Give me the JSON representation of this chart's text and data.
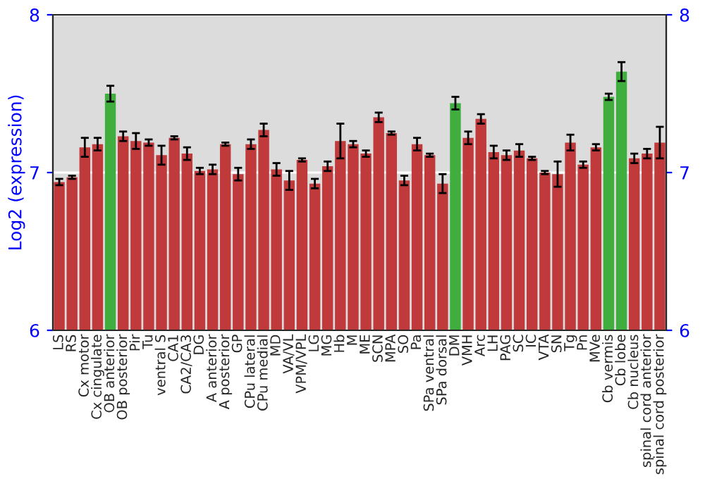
{
  "chart_data": {
    "type": "bar",
    "ylabel": "Log2 (expression)",
    "categories": [
      "LS",
      "RS",
      "Cx motor",
      "Cx cingulate",
      "OB anterior",
      "OB posterior",
      "Pir",
      "Tu",
      "ventral S",
      "CA1",
      "CA2/CA3",
      "DG",
      "A anterior",
      "A posterior",
      "GP",
      "CPu lateral",
      "CPu medial",
      "MD",
      "VA/VL",
      "VPM/VPL",
      "LG",
      "MG",
      "Hb",
      "M",
      "ME",
      "SCN",
      "MPA",
      "SO",
      "Pa",
      "SPa ventral",
      "SPa dorsal",
      "DM",
      "VMH",
      "Arc",
      "LH",
      "PAG",
      "SC",
      "IC",
      "VTA",
      "SN",
      "Tg",
      "Pn",
      "MVe",
      "Cb vermis",
      "Cb lobe",
      "Cb nucleus",
      "spinal cord anterior",
      "spinal cord posterior"
    ],
    "values": [
      6.94,
      6.97,
      7.16,
      7.18,
      7.5,
      7.23,
      7.2,
      7.19,
      7.11,
      7.22,
      7.12,
      7.01,
      7.02,
      7.18,
      6.99,
      7.18,
      7.27,
      7.02,
      6.95,
      7.08,
      6.93,
      7.04,
      7.2,
      7.18,
      7.12,
      7.35,
      7.25,
      6.95,
      7.18,
      7.11,
      6.93,
      7.44,
      7.22,
      7.34,
      7.13,
      7.11,
      7.14,
      7.09,
      7.0,
      6.99,
      7.19,
      7.05,
      7.16,
      7.48,
      7.64,
      7.09,
      7.12,
      7.19
    ],
    "errors": [
      0.02,
      0.01,
      0.06,
      0.04,
      0.05,
      0.03,
      0.05,
      0.02,
      0.06,
      0.01,
      0.04,
      0.02,
      0.03,
      0.01,
      0.04,
      0.03,
      0.04,
      0.04,
      0.06,
      0.01,
      0.03,
      0.03,
      0.11,
      0.02,
      0.02,
      0.03,
      0.01,
      0.03,
      0.04,
      0.01,
      0.06,
      0.04,
      0.04,
      0.03,
      0.04,
      0.03,
      0.04,
      0.01,
      0.01,
      0.08,
      0.05,
      0.02,
      0.02,
      0.02,
      0.06,
      0.03,
      0.03,
      0.1
    ],
    "colors": [
      "#c0393b",
      "#c0393b",
      "#c0393b",
      "#c0393b",
      "#3fae3f",
      "#c0393b",
      "#c0393b",
      "#c0393b",
      "#c0393b",
      "#c0393b",
      "#c0393b",
      "#c0393b",
      "#c0393b",
      "#c0393b",
      "#c0393b",
      "#c0393b",
      "#c0393b",
      "#c0393b",
      "#c0393b",
      "#c0393b",
      "#c0393b",
      "#c0393b",
      "#c0393b",
      "#c0393b",
      "#c0393b",
      "#c0393b",
      "#c0393b",
      "#c0393b",
      "#c0393b",
      "#c0393b",
      "#c0393b",
      "#3fae3f",
      "#c0393b",
      "#c0393b",
      "#c0393b",
      "#c0393b",
      "#c0393b",
      "#c0393b",
      "#c0393b",
      "#c0393b",
      "#c0393b",
      "#c0393b",
      "#c0393b",
      "#3fae3f",
      "#3fae3f",
      "#c0393b",
      "#c0393b",
      "#c0393b"
    ],
    "ylim": [
      6,
      8
    ],
    "yticks": [
      6,
      7,
      8
    ],
    "y2lim": [
      6,
      8
    ],
    "y2ticks": [
      6,
      7,
      8
    ],
    "grid": "y"
  }
}
